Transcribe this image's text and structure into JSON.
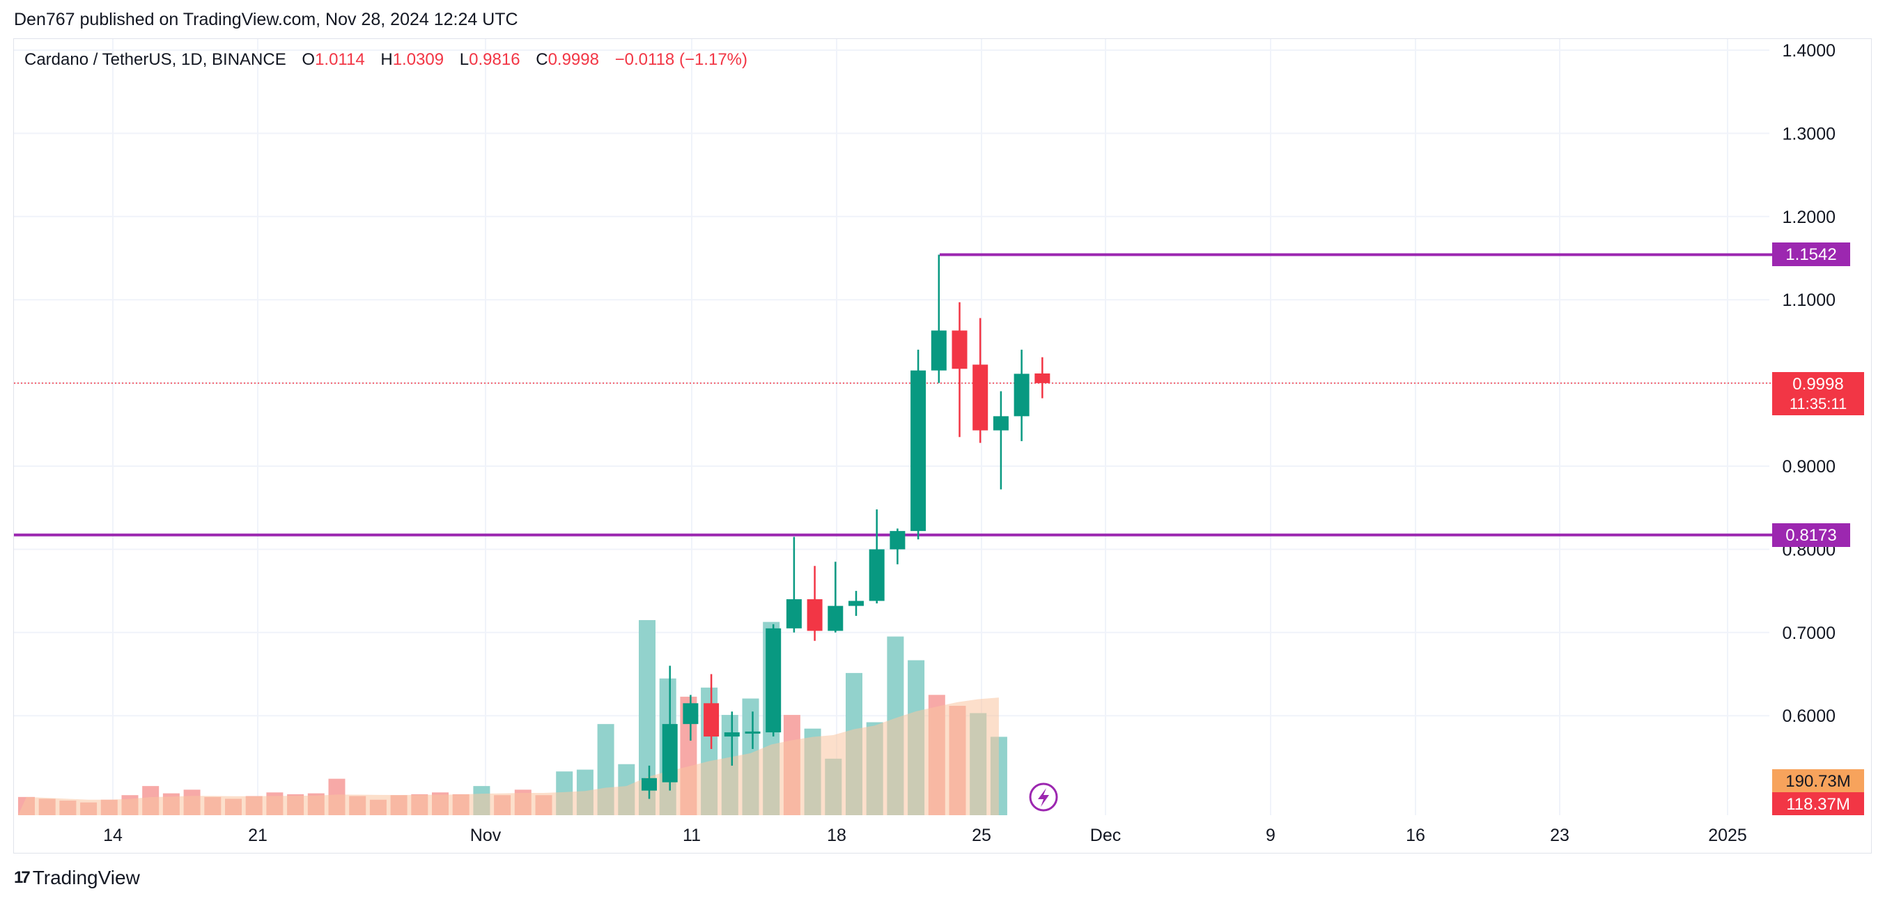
{
  "header": {
    "published": "Den767 published on TradingView.com, Nov 28, 2024 12:24 UTC"
  },
  "legend": {
    "symbol": "Cardano / TetherUS, 1D, BINANCE",
    "o_label": "O",
    "o_value": "1.0114",
    "h_label": "H",
    "h_value": "1.0309",
    "l_label": "L",
    "l_value": "0.9816",
    "c_label": "C",
    "c_value": "0.9998",
    "change": "−0.0118 (−1.17%)"
  },
  "colors": {
    "up": "#089981",
    "down": "#f23645",
    "vol_up": "#92d2cc",
    "vol_down": "#f7a9a7",
    "level_line": "#9c27b0",
    "ma_fill": "#f9c4a0",
    "grid": "#f0f3fa",
    "axis_text": "#131722",
    "badge_volume_up": "#f7a35c",
    "badge_volume_down": "#f23645"
  },
  "chart_data": {
    "type": "candlestick",
    "x_ticks": [
      "14",
      "21",
      "Nov",
      "11",
      "18",
      "25",
      "Dec",
      "9",
      "16",
      "23",
      "2025"
    ],
    "y_ticks": [
      "1.4000",
      "1.3000",
      "1.2000",
      "1.1000",
      "0.9000",
      "0.8000",
      "0.7000",
      "0.6000"
    ],
    "y_range": [
      0.53,
      1.42
    ],
    "price_labels": {
      "resistance": "1.1542",
      "current": "0.9998",
      "countdown": "11:35:11",
      "support": "0.8173"
    },
    "levels": [
      1.1542,
      0.8173
    ],
    "current_price": 0.9998,
    "volume_labels": {
      "upper": "190.73M",
      "lower": "118.37M"
    },
    "candles": [
      {
        "date": "Nov 9",
        "o": 0.51,
        "h": 0.54,
        "l": 0.5,
        "c": 0.525
      },
      {
        "date": "Nov 10",
        "o": 0.52,
        "h": 0.66,
        "l": 0.51,
        "c": 0.59
      },
      {
        "date": "Nov 11",
        "o": 0.59,
        "h": 0.625,
        "l": 0.57,
        "c": 0.615
      },
      {
        "date": "Nov 12",
        "o": 0.615,
        "h": 0.65,
        "l": 0.56,
        "c": 0.575
      },
      {
        "date": "Nov 13",
        "o": 0.575,
        "h": 0.605,
        "l": 0.54,
        "c": 0.58
      },
      {
        "date": "Nov 14",
        "o": 0.58,
        "h": 0.605,
        "l": 0.56,
        "c": 0.581
      },
      {
        "date": "Nov 15",
        "o": 0.58,
        "h": 0.71,
        "l": 0.575,
        "c": 0.705
      },
      {
        "date": "Nov 16",
        "o": 0.705,
        "h": 0.815,
        "l": 0.7,
        "c": 0.74
      },
      {
        "date": "Nov 17",
        "o": 0.74,
        "h": 0.78,
        "l": 0.69,
        "c": 0.702
      },
      {
        "date": "Nov 18",
        "o": 0.702,
        "h": 0.785,
        "l": 0.7,
        "c": 0.732
      },
      {
        "date": "Nov 19",
        "o": 0.732,
        "h": 0.75,
        "l": 0.72,
        "c": 0.738
      },
      {
        "date": "Nov 20",
        "o": 0.738,
        "h": 0.848,
        "l": 0.735,
        "c": 0.8
      },
      {
        "date": "Nov 21",
        "o": 0.8,
        "h": 0.825,
        "l": 0.782,
        "c": 0.822
      },
      {
        "date": "Nov 22",
        "o": 0.822,
        "h": 1.04,
        "l": 0.812,
        "c": 1.015
      },
      {
        "date": "Nov 23",
        "o": 1.015,
        "h": 1.1542,
        "l": 1.0,
        "c": 1.063
      },
      {
        "date": "Nov 24",
        "o": 1.063,
        "h": 1.097,
        "l": 0.935,
        "c": 1.017
      },
      {
        "date": "Nov 25",
        "o": 1.022,
        "h": 1.078,
        "l": 0.928,
        "c": 0.943
      },
      {
        "date": "Nov 26",
        "o": 0.943,
        "h": 0.99,
        "l": 0.872,
        "c": 0.96
      },
      {
        "date": "Nov 27",
        "o": 0.96,
        "h": 1.04,
        "l": 0.93,
        "c": 1.011
      },
      {
        "date": "Nov 28",
        "o": 1.0114,
        "h": 1.0309,
        "l": 0.9816,
        "c": 0.9998
      }
    ],
    "volume": {
      "max": 214,
      "bars": [
        {
          "v": 20,
          "up": false
        },
        {
          "v": 18,
          "up": false
        },
        {
          "v": 16,
          "up": false
        },
        {
          "v": 14,
          "up": false
        },
        {
          "v": 17,
          "up": false
        },
        {
          "v": 22,
          "up": false
        },
        {
          "v": 32,
          "up": false
        },
        {
          "v": 24,
          "up": false
        },
        {
          "v": 28,
          "up": false
        },
        {
          "v": 20,
          "up": false
        },
        {
          "v": 18,
          "up": false
        },
        {
          "v": 21,
          "up": false
        },
        {
          "v": 25,
          "up": false
        },
        {
          "v": 23,
          "up": false
        },
        {
          "v": 24,
          "up": false
        },
        {
          "v": 40,
          "up": false
        },
        {
          "v": 21,
          "up": false
        },
        {
          "v": 17,
          "up": false
        },
        {
          "v": 22,
          "up": false
        },
        {
          "v": 23,
          "up": false
        },
        {
          "v": 25,
          "up": false
        },
        {
          "v": 23,
          "up": false
        },
        {
          "v": 32,
          "up": true
        },
        {
          "v": 22,
          "up": false
        },
        {
          "v": 28,
          "up": false
        },
        {
          "v": 22,
          "up": false
        },
        {
          "v": 48,
          "up": true
        },
        {
          "v": 50,
          "up": true
        },
        {
          "v": 100,
          "up": true
        },
        {
          "v": 56,
          "up": true
        },
        {
          "v": 214,
          "up": true
        },
        {
          "v": 150,
          "up": true
        },
        {
          "v": 130,
          "up": false
        },
        {
          "v": 140,
          "up": true
        },
        {
          "v": 110,
          "up": true
        },
        {
          "v": 128,
          "up": true
        },
        {
          "v": 212,
          "up": true
        },
        {
          "v": 110,
          "up": false
        },
        {
          "v": 95,
          "up": true
        },
        {
          "v": 62,
          "up": true
        },
        {
          "v": 156,
          "up": true
        },
        {
          "v": 102,
          "up": true
        },
        {
          "v": 196,
          "up": true
        },
        {
          "v": 170,
          "up": true
        },
        {
          "v": 132,
          "up": false
        },
        {
          "v": 120,
          "up": false
        },
        {
          "v": 112,
          "up": true
        },
        {
          "v": 86,
          "up": true
        }
      ]
    }
  },
  "footer": {
    "brand": "TradingView",
    "logo_mark": "17"
  }
}
